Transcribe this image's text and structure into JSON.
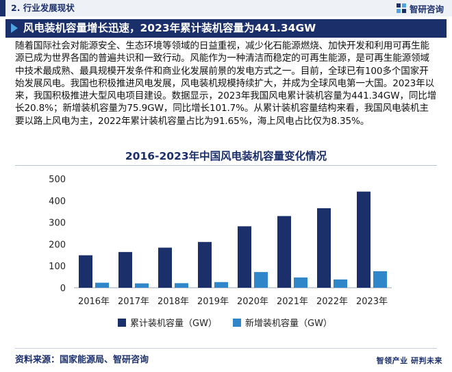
{
  "header": {
    "section_title": "2. 行业发展现状",
    "brand_name": "智研咨询"
  },
  "headline": "风电装机容量增长迅速，2023年累计装机容量为441.34GW",
  "paragraph": "随着国际社会对能源安全、生态环境等领域的日益重视，减少化石能源燃烧、加快开发和利用可再生能源已成为世界各国的普遍共识和一致行动。风能作为一种清洁而稳定的可再生能源，是可再生能源领域中技术最成熟、最具规模开发条件和商业化发展前景的发电方式之一。目前，全球已有100多个国家开始发展风电。我国也积极推进风电发展，风电装机规模持续扩大，并成为全球风电第一大国。2023年以来，我国积极推进大型风电项目建设。数据显示，2023年我国风电累计装机容量为441.34GW，同比增长20.8%；新增装机容量为75.9GW，同比增长101.7%。从累计装机容量结构来看，我国风电装机主要以路上风电为主，2022年累计装机容量占比为91.65%，海上风电占比仅为8.35%。",
  "chart_data": {
    "type": "bar",
    "title": "2016-2023年中国风电装机容量变化情况",
    "categories": [
      "2016年",
      "2017年",
      "2018年",
      "2019年",
      "2020年",
      "2021年",
      "2022年",
      "2023年"
    ],
    "series": [
      {
        "name": "累计装机容量（GW）",
        "color": "#1b2f6b",
        "values": [
          149,
          164,
          184,
          210,
          282,
          329,
          365,
          441.34
        ]
      },
      {
        "name": "新增装机容量（GW）",
        "color": "#2f86c8",
        "values": [
          23,
          20,
          21,
          26,
          72,
          47,
          38,
          75.9
        ]
      }
    ],
    "ylim": [
      0,
      500
    ],
    "yticks": [
      0,
      100,
      200,
      300,
      400,
      500
    ],
    "grid": false,
    "legend": "bottom-left"
  },
  "footer": {
    "source": "资料来源：国家能源局、智研咨询",
    "slogan_a": "智领产业",
    "slogan_b": "研判未来"
  }
}
